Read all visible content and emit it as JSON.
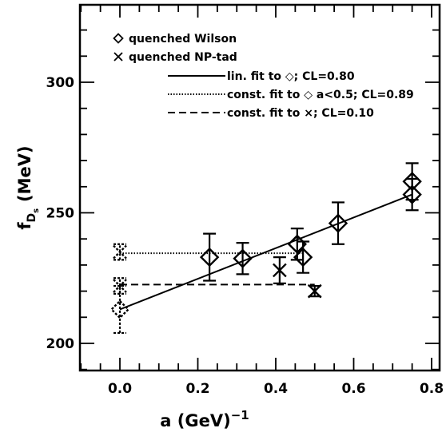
{
  "chart_data": {
    "type": "scatter",
    "xlabel": "a  (GeV)",
    "xlabel_sup": "−1",
    "ylabel_main": "f",
    "ylabel_sub": "D",
    "ylabel_subsub": "s",
    "ylabel_unit": "(MeV)",
    "xlim": [
      -0.1,
      0.82
    ],
    "ylim": [
      190,
      328
    ],
    "x_ticks": [
      "0.0",
      "0.2",
      "0.4",
      "0.6",
      "0.8"
    ],
    "x_tick_values": [
      0.0,
      0.2,
      0.4,
      0.6,
      0.8
    ],
    "y_ticks": [
      "200",
      "250",
      "300"
    ],
    "y_tick_values": [
      200,
      250,
      300
    ],
    "legend_position": "top-left",
    "series": [
      {
        "name": "quenched Wilson",
        "marker": "diamond",
        "points": [
          {
            "x": 0.23,
            "y": 233,
            "err": 9
          },
          {
            "x": 0.315,
            "y": 232.5,
            "err": 6
          },
          {
            "x": 0.455,
            "y": 238,
            "err": 6
          },
          {
            "x": 0.47,
            "y": 233,
            "err": 6
          },
          {
            "x": 0.56,
            "y": 246,
            "err": 8
          },
          {
            "x": 0.75,
            "y": 262,
            "err": 7
          },
          {
            "x": 0.75,
            "y": 257,
            "err": 6
          }
        ]
      },
      {
        "name": "quenched NP-tad",
        "marker": "cross",
        "points": [
          {
            "x": 0.41,
            "y": 228,
            "err": 5
          },
          {
            "x": 0.5,
            "y": 220,
            "err": 2
          }
        ]
      }
    ],
    "extrapolations": [
      {
        "x": 0.0,
        "y": 213,
        "err": 9,
        "marker": "diamond-dashed"
      },
      {
        "x": 0.0,
        "y": 235,
        "err": 3,
        "marker": "cross-dashed"
      },
      {
        "x": 0.0,
        "y": 222,
        "err": 3,
        "marker": "cross-dashed"
      }
    ],
    "fits": [
      {
        "name": "lin. fit to ◇; CL=0.80",
        "style": "solid",
        "x": [
          0.0,
          0.75
        ],
        "y": [
          213,
          257
        ]
      },
      {
        "name": "const. fit to ◇ a<0.5; CL=0.89",
        "style": "dotted",
        "x": [
          0.0,
          0.47
        ],
        "y": [
          234.5,
          234.5
        ]
      },
      {
        "name": "const. fit to ×; CL=0.10",
        "style": "dashed",
        "x": [
          0.0,
          0.5
        ],
        "y": [
          222.5,
          222.5
        ]
      }
    ],
    "legend": [
      "quenched Wilson",
      "quenched NP-tad",
      "lin. fit to ◇; CL=0.80",
      "const. fit to ◇ a<0.5; CL=0.89",
      "const. fit to ×; CL=0.10"
    ]
  }
}
